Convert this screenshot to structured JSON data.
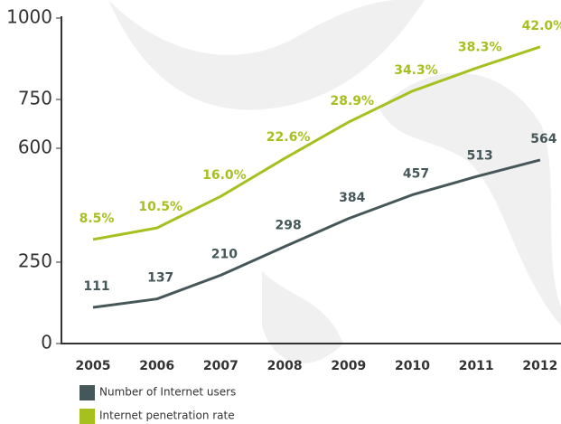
{
  "chart_data": {
    "type": "line",
    "categories": [
      "2005",
      "2006",
      "2007",
      "2008",
      "2009",
      "2010",
      "2011",
      "2012"
    ],
    "ylim": [
      0,
      1000
    ],
    "yticks": [
      0,
      250,
      600,
      750,
      1000
    ],
    "y2lim": [
      -9.6,
      47
    ],
    "legend": "bottom-left",
    "series": [
      {
        "name": "Number of Internet users",
        "color": "#465759",
        "values": [
          111,
          137,
          210,
          298,
          384,
          457,
          513,
          564
        ]
      },
      {
        "name": "Internet penetration rate",
        "color": "#a6c11f",
        "axis": "y2",
        "values": [
          8.5,
          10.5,
          16.0,
          22.6,
          28.9,
          34.3,
          38.3,
          42.0
        ],
        "value_labels": [
          "8.5%",
          "10.5%",
          "16.0%",
          "22.6%",
          "28.9%",
          "34.3%",
          "38.3%",
          "42.0%"
        ]
      }
    ]
  }
}
